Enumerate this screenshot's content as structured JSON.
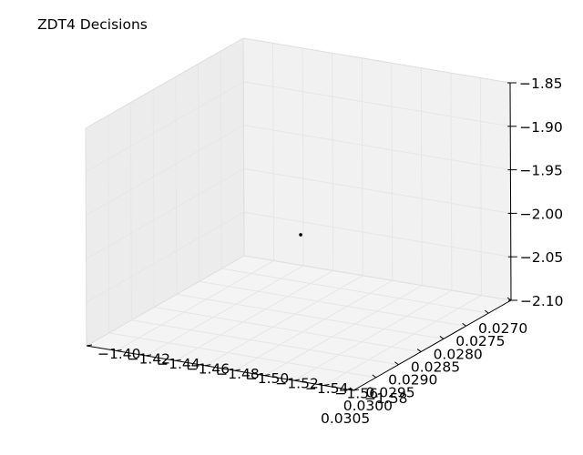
{
  "chart_data": {
    "type": "scatter",
    "projection": "3d",
    "title": "ZDT4 Decisions",
    "xlabel": "",
    "ylabel": "",
    "zlabel": "",
    "grid": true,
    "xlim": [
      0.027,
      0.0305
    ],
    "ylim": [
      -1.58,
      -1.4
    ],
    "zlim": [
      -2.1,
      -1.85
    ],
    "x_ticks": [
      "0.0270",
      "0.0275",
      "0.0280",
      "0.0285",
      "0.0290",
      "0.0295",
      "0.0300",
      "0.0305"
    ],
    "y_ticks": [
      "−1.58",
      "−1.56",
      "−1.54",
      "−1.52",
      "−1.50",
      "−1.48",
      "−1.46",
      "−1.44",
      "−1.42",
      "−1.40"
    ],
    "z_ticks": [
      "−2.10",
      "−2.05",
      "−2.00",
      "−1.95",
      "−1.90",
      "−1.85"
    ],
    "points": [
      {
        "x": 0.0287,
        "y": -1.49,
        "z": -2.0
      }
    ],
    "marker_color": "#000000",
    "pane_color": "#f2f2f2",
    "grid_color": "#e6e6e6"
  }
}
